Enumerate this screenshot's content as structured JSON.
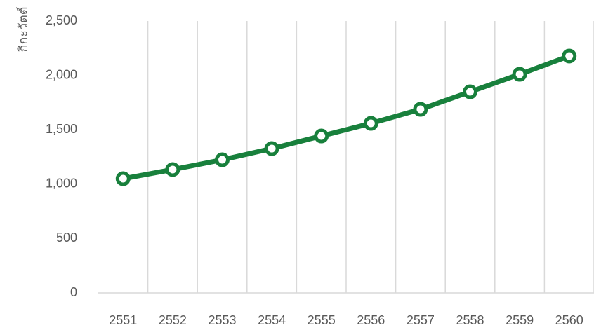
{
  "chart_data": {
    "type": "line",
    "y_label": "กิกะวัตต์",
    "categories": [
      "2551",
      "2552",
      "2553",
      "2554",
      "2555",
      "2556",
      "2557",
      "2558",
      "2559",
      "2560"
    ],
    "series": [
      {
        "color": "#18803c",
        "values": [
          1050,
          1134,
          1224,
          1327,
          1443,
          1559,
          1688,
          1849,
          2010,
          2178
        ]
      }
    ],
    "ylim": [
      0,
      2500
    ],
    "yticks": [
      0,
      500,
      {
        "value": 1000,
        "label": "1,000"
      },
      {
        "value": 1500,
        "label": "1,500"
      },
      {
        "value": 2000,
        "label": "2,000"
      },
      {
        "value": 2500,
        "label": "2,500"
      }
    ],
    "grid": true
  }
}
